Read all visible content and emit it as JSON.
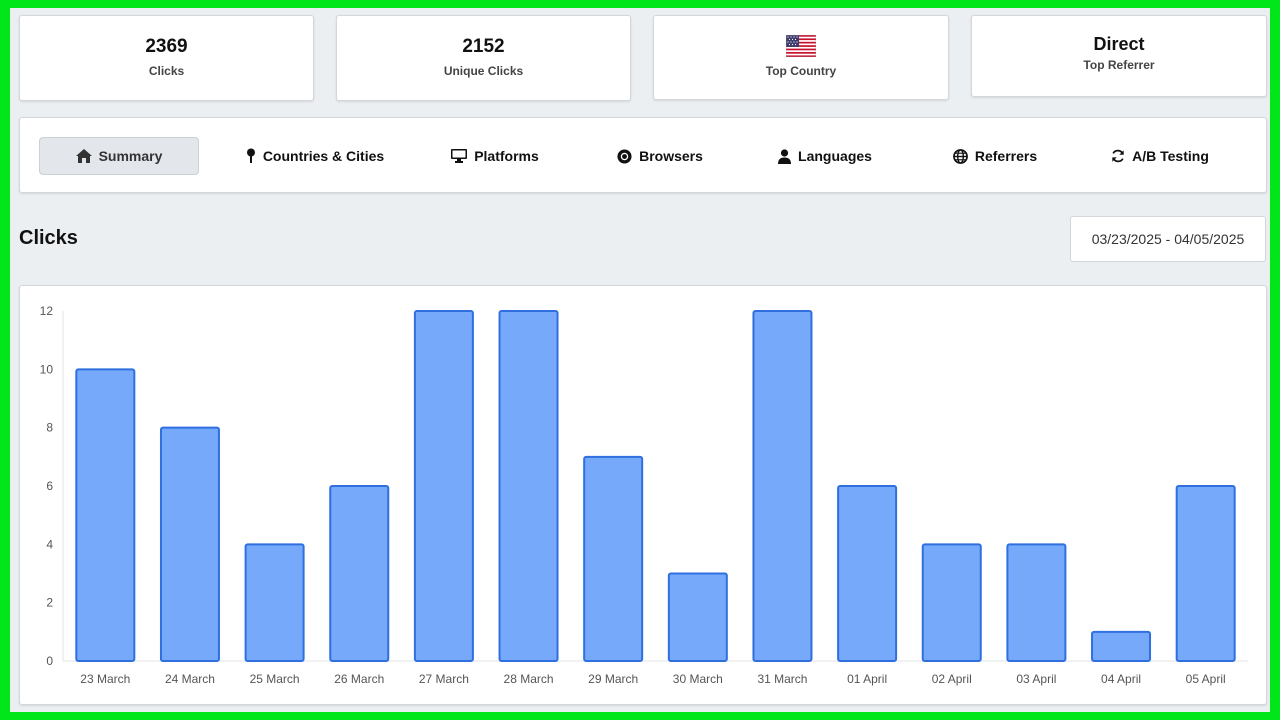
{
  "stats": {
    "clicks": {
      "value": "2369",
      "label": "Clicks"
    },
    "unique": {
      "value": "2152",
      "label": "Unique Clicks"
    },
    "country": {
      "icon": "us-flag-icon",
      "label": "Top Country"
    },
    "referrer": {
      "value": "Direct",
      "label": "Top Referrer"
    }
  },
  "tabs": [
    {
      "label": "Summary",
      "icon": "home-icon",
      "active": true
    },
    {
      "label": "Countries & Cities",
      "icon": "map-pin-icon"
    },
    {
      "label": "Platforms",
      "icon": "monitor-icon"
    },
    {
      "label": "Browsers",
      "icon": "chrome-icon"
    },
    {
      "label": "Languages",
      "icon": "user-icon"
    },
    {
      "label": "Referrers",
      "icon": "globe-icon"
    },
    {
      "label": "A/B Testing",
      "icon": "refresh-icon"
    }
  ],
  "section": {
    "title": "Clicks"
  },
  "date_range": {
    "value": "03/23/2025 - 04/05/2025"
  },
  "colors": {
    "bar_fill": "#76a9fa",
    "bar_stroke": "#2f6fe0",
    "accent_green": "#00e61a"
  },
  "chart_data": {
    "type": "bar",
    "categories": [
      "23 March",
      "24 March",
      "25 March",
      "26 March",
      "27 March",
      "28 March",
      "29 March",
      "30 March",
      "31 March",
      "01 April",
      "02 April",
      "03 April",
      "04 April",
      "05 April"
    ],
    "values": [
      10,
      8,
      4,
      6,
      12,
      12,
      7,
      3,
      12,
      6,
      4,
      4,
      1,
      6
    ],
    "ylim": [
      0,
      12
    ],
    "yticks": [
      0,
      2,
      4,
      6,
      8,
      10,
      12
    ],
    "grid": false
  }
}
